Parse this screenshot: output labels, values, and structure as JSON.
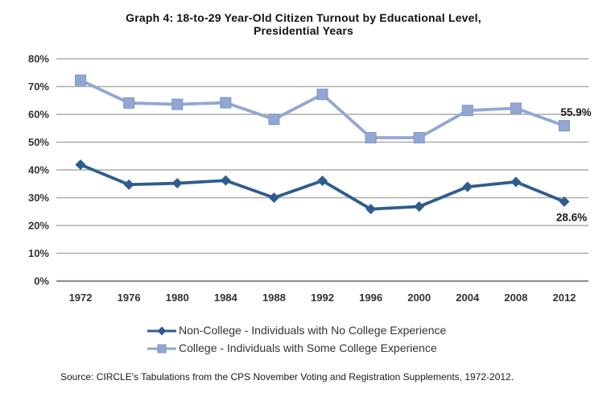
{
  "title": {
    "line1": "Graph 4: 18-to-29 Year-Old  Citizen Turnout by Educational Level,",
    "line2": "Presidential Years"
  },
  "chart_data": {
    "type": "line",
    "categories": [
      "1972",
      "1976",
      "1980",
      "1984",
      "1988",
      "1992",
      "1996",
      "2000",
      "2004",
      "2008",
      "2012"
    ],
    "series": [
      {
        "name": "Non-College - Individuals with No College Experience",
        "marker": "diamond",
        "color": "#2E5C8F",
        "values": [
          41.9,
          34.7,
          35.2,
          36.2,
          30.0,
          36.1,
          25.9,
          26.8,
          33.9,
          35.7,
          28.6
        ]
      },
      {
        "name": "College - Individuals with Some College Experience",
        "marker": "square",
        "color": "#92A7D3",
        "marker_edge": "#7E95C5",
        "values": [
          72.3,
          64.1,
          63.6,
          64.2,
          58.2,
          67.2,
          51.6,
          51.6,
          61.4,
          62.2,
          55.9
        ]
      }
    ],
    "ylim": [
      0,
      80
    ],
    "ytick_step": 10,
    "ytick_labels": [
      "0%",
      "10%",
      "20%",
      "30%",
      "40%",
      "50%",
      "60%",
      "70%",
      "80%"
    ],
    "grid": true,
    "gridline_color": "#ABABAB",
    "baseline_color": "#8F8F8F",
    "legend_position": "bottom",
    "annotations": [
      {
        "text": "55.9%",
        "series_index": 1,
        "category": "2012"
      },
      {
        "text": "28.6%",
        "series_index": 0,
        "category": "2012"
      }
    ]
  },
  "source": "Source:  CIRCLE's Tabulations from the CPS November Voting and Registration Supplements, 1972-2012."
}
